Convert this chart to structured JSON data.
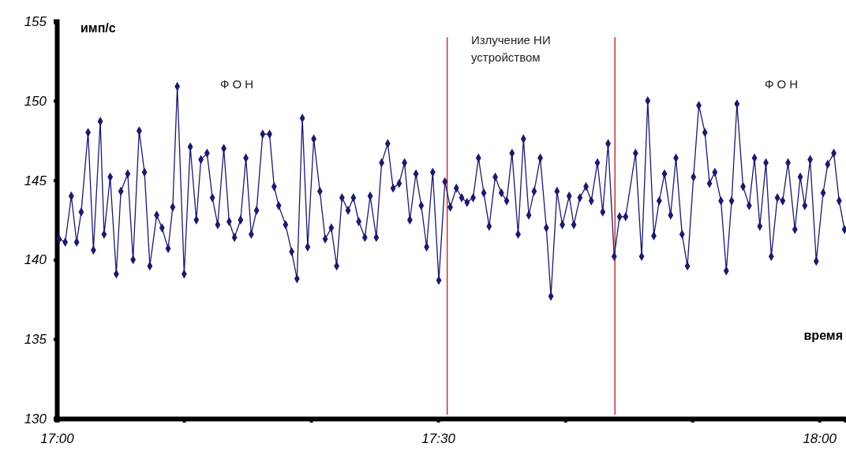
{
  "chart_data": {
    "type": "line",
    "ylabel": "имп/с",
    "xlabel": "время",
    "annotations": [
      "Ф О Н",
      "Излучение НИ устройством",
      "Ф О Н"
    ],
    "xlim": [
      17,
      18.035
    ],
    "ylim": [
      130,
      155
    ],
    "xticks": [
      {
        "value": 17,
        "label": "17:00"
      },
      {
        "value": 17.1667,
        "label": null
      },
      {
        "value": 17.3333,
        "label": null
      },
      {
        "value": 17.5,
        "label": "17:30"
      },
      {
        "value": 17.6667,
        "label": null
      },
      {
        "value": 17.8333,
        "label": null
      },
      {
        "value": 18,
        "label": "18:00"
      }
    ],
    "yticks": [
      130,
      135,
      140,
      145,
      150,
      155
    ],
    "grid": false,
    "marker": "diamond",
    "line_style": "solid",
    "ref_lines": [
      {
        "axis": "x",
        "value": 17.512,
        "color": "#cc3333"
      },
      {
        "axis": "x",
        "value": 17.732,
        "color": "#cc3333"
      }
    ],
    "series": [
      {
        "color": "#1a1a6e",
        "x": [
          17.003,
          17.011,
          17.019,
          17.026,
          17.032,
          17.041,
          17.048,
          17.057,
          17.062,
          17.07,
          17.078,
          17.084,
          17.093,
          17.1,
          17.108,
          17.115,
          17.122,
          17.131,
          17.138,
          17.146,
          17.152,
          17.158,
          17.167,
          17.175,
          17.183,
          17.189,
          17.197,
          17.204,
          17.211,
          17.219,
          17.226,
          17.233,
          17.241,
          17.248,
          17.255,
          17.262,
          17.27,
          17.279,
          17.285,
          17.291,
          17.3,
          17.308,
          17.315,
          17.322,
          17.329,
          17.337,
          17.345,
          17.352,
          17.36,
          17.367,
          17.374,
          17.382,
          17.389,
          17.396,
          17.404,
          17.411,
          17.419,
          17.426,
          17.434,
          17.441,
          17.449,
          17.456,
          17.463,
          17.471,
          17.478,
          17.485,
          17.493,
          17.501,
          17.509,
          17.516,
          17.524,
          17.531,
          17.538,
          17.546,
          17.553,
          17.56,
          17.567,
          17.575,
          17.583,
          17.59,
          17.597,
          17.605,
          17.612,
          17.619,
          17.626,
          17.634,
          17.642,
          17.648,
          17.656,
          17.663,
          17.672,
          17.678,
          17.686,
          17.694,
          17.701,
          17.709,
          17.716,
          17.723,
          17.731,
          17.738,
          17.746,
          17.759,
          17.767,
          17.775,
          17.783,
          17.79,
          17.797,
          17.805,
          17.812,
          17.82,
          17.827,
          17.835,
          17.842,
          17.85,
          17.856,
          17.863,
          17.871,
          17.878,
          17.885,
          17.892,
          17.9,
          17.908,
          17.915,
          17.922,
          17.93,
          17.937,
          17.945,
          17.952,
          17.959,
          17.968,
          17.975,
          17.981,
          17.988,
          17.996,
          18.005,
          18.011,
          18.019,
          18.026,
          18.033
        ],
        "values": [
          141.3,
          141.1,
          144.0,
          141.1,
          143.0,
          148.0,
          140.6,
          148.7,
          141.6,
          145.2,
          139.1,
          144.3,
          145.4,
          140.0,
          148.1,
          145.5,
          139.6,
          142.8,
          142.0,
          140.7,
          143.3,
          150.9,
          139.1,
          147.1,
          142.5,
          146.3,
          146.7,
          143.9,
          142.2,
          147.0,
          142.4,
          141.4,
          142.5,
          146.4,
          141.6,
          143.1,
          147.9,
          147.9,
          144.6,
          143.4,
          142.2,
          140.5,
          138.8,
          148.9,
          140.8,
          147.6,
          144.3,
          141.3,
          142.0,
          139.6,
          143.9,
          143.1,
          143.9,
          142.4,
          141.4,
          144.0,
          141.4,
          146.1,
          147.3,
          144.5,
          144.8,
          146.1,
          142.5,
          145.4,
          143.4,
          140.8,
          145.5,
          138.7,
          144.9,
          143.3,
          144.5,
          143.9,
          143.6,
          143.9,
          146.4,
          144.2,
          142.1,
          145.2,
          144.2,
          143.7,
          146.7,
          141.6,
          147.6,
          142.8,
          144.3,
          146.4,
          142.0,
          137.7,
          144.3,
          142.2,
          144.0,
          142.2,
          143.9,
          144.6,
          143.7,
          146.1,
          143.0,
          147.3,
          140.2,
          142.7,
          142.7,
          146.7,
          140.2,
          150.0,
          141.5,
          143.7,
          145.4,
          142.8,
          146.4,
          141.6,
          139.6,
          145.2,
          149.7,
          148.0,
          144.8,
          145.5,
          143.7,
          139.3,
          143.7,
          149.8,
          144.6,
          143.4,
          146.4,
          142.1,
          146.1,
          140.2,
          143.9,
          143.7,
          146.1,
          141.9,
          145.2,
          143.4,
          146.3,
          139.9,
          144.2,
          146.0,
          146.7,
          143.7,
          141.9
        ]
      }
    ]
  }
}
